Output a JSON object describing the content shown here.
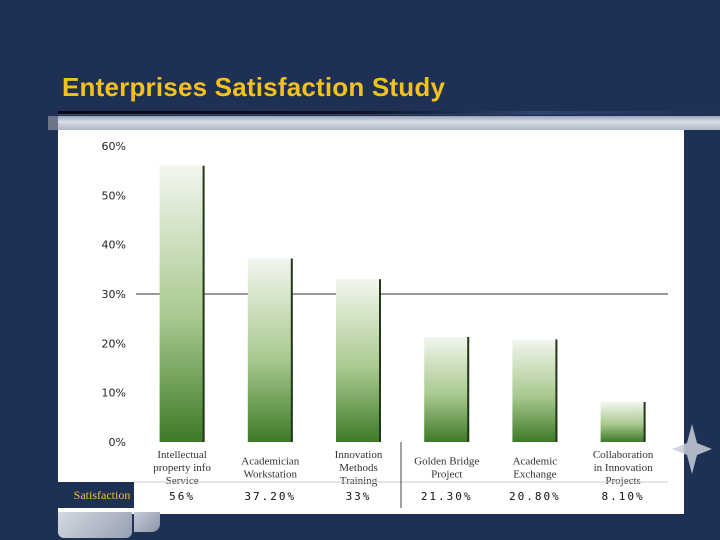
{
  "slide": {
    "title": "Enterprises Satisfaction Study",
    "colors": {
      "background": "#1f3055",
      "title": "#f2c21c",
      "bar_top": "#f2f6ee",
      "bar_bottom": "#3d7a28",
      "row_label_bg": "#1f3055"
    }
  },
  "chart_data": {
    "type": "bar",
    "title": "",
    "xlabel": "",
    "ylabel": "",
    "categories": [
      "Intellectual property info Service",
      "Academician Workstation",
      "Innovation Methods Training",
      "Golden Bridge Project",
      "Academic Exchange",
      "Collaboration in Innovation Projects"
    ],
    "series": [
      {
        "name": "Satisfaction",
        "values": [
          56,
          37.2,
          33,
          21.3,
          20.8,
          8.1
        ],
        "value_labels": [
          "56%",
          "37.20%",
          "33%",
          "21.30%",
          "20.80%",
          "8.10%"
        ]
      }
    ],
    "yticks": [
      "0%",
      "10%",
      "20%",
      "30%",
      "40%",
      "50%",
      "60%"
    ],
    "ylim": [
      0,
      60
    ],
    "reference_line": 30,
    "grid": false,
    "legend": "none",
    "table_row_label": "Satisfaction"
  }
}
